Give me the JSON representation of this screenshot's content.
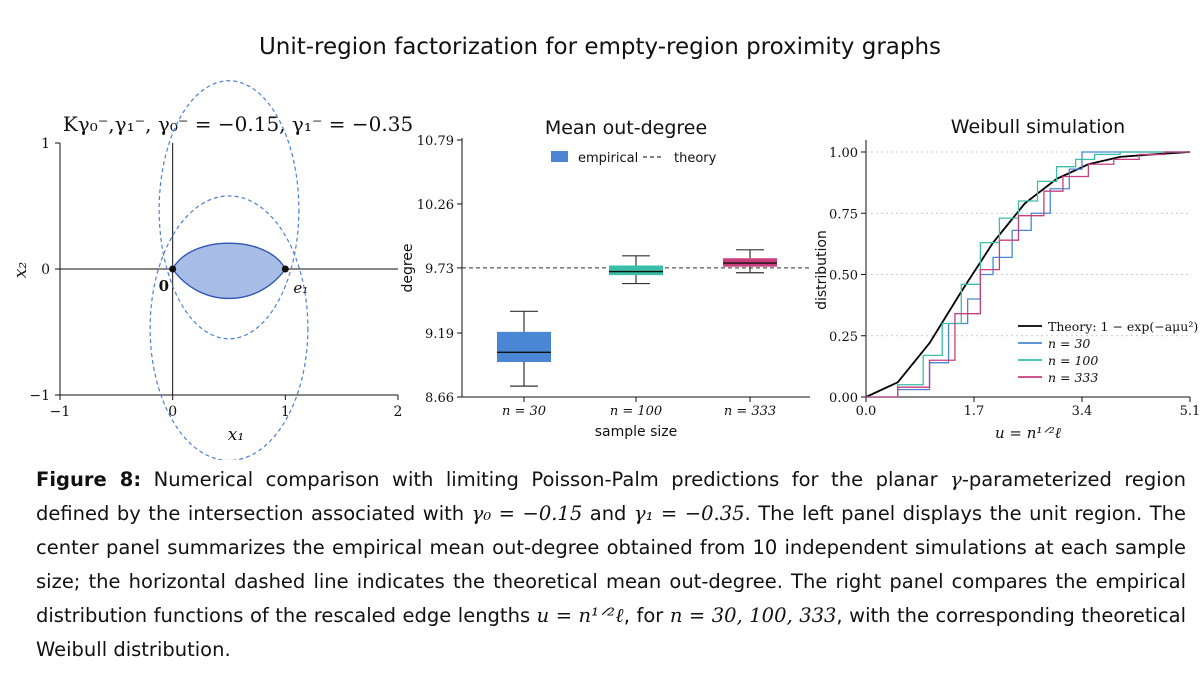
{
  "figure_title": "Unit-region factorization for empty-region proximity graphs",
  "panels": {
    "left": {
      "title": "Kγ₀⁻,γ₁⁻, γ₀⁻ = −0.15, γ₁⁻ = −0.35",
      "xlabel": "x₁",
      "ylabel": "x₂",
      "x_ticks": [
        "−1",
        "0",
        "1",
        "2"
      ],
      "y_ticks": [
        "1",
        "0",
        "−1"
      ],
      "point_labels": [
        "0",
        "e₁"
      ]
    },
    "center": {
      "title": "Mean out-degree",
      "xlabel": "sample size",
      "ylabel": "degree",
      "legend": [
        "empirical",
        "theory"
      ]
    },
    "right": {
      "title": "Weibull simulation",
      "xlabel": "u = n¹ᐟ²ℓ",
      "ylabel": "distribution",
      "legend": [
        "Theory: 1 − exp(−aμu²)",
        "n = 30",
        "n = 100",
        "n = 333"
      ]
    }
  },
  "chart_data": [
    {
      "type": "area",
      "title": "Kγ₀⁻,γ₁⁻, γ₀⁻ = −0.15, γ₁⁻ = −0.35",
      "xlabel": "x₁",
      "ylabel": "x₂",
      "xlim": [
        -1,
        2
      ],
      "ylim": [
        -1,
        1
      ],
      "gamma0": -0.15,
      "gamma1": -0.35,
      "points": [
        {
          "label": "0",
          "x": 0,
          "y": 0
        },
        {
          "label": "e₁",
          "x": 1,
          "y": 0
        }
      ],
      "region_colors": {
        "fill": "#a8bde6",
        "edge": "#2f55b8",
        "circle": "#4f7ed6"
      }
    },
    {
      "type": "box",
      "title": "Mean out-degree",
      "xlabel": "sample size",
      "ylabel": "degree",
      "categories": [
        "n = 30",
        "n = 100",
        "n = 333"
      ],
      "y_ticks": [
        8.66,
        9.19,
        9.73,
        10.26,
        10.79
      ],
      "ylim": [
        8.66,
        10.79
      ],
      "theory": 9.73,
      "boxes": [
        {
          "category": "n = 30",
          "whisker_low": 8.75,
          "q1": 8.95,
          "median": 9.03,
          "q3": 9.2,
          "whisker_high": 9.37,
          "color": "#4a86d4"
        },
        {
          "category": "n = 100",
          "whisker_low": 9.6,
          "q1": 9.67,
          "median": 9.7,
          "q3": 9.75,
          "whisker_high": 9.83,
          "color": "#3bbfa8"
        },
        {
          "category": "n = 333",
          "whisker_low": 9.69,
          "q1": 9.74,
          "median": 9.77,
          "q3": 9.81,
          "whisker_high": 9.88,
          "color": "#c83f7e"
        }
      ],
      "legend": [
        "empirical",
        "theory"
      ],
      "grid": false
    },
    {
      "type": "line",
      "title": "Weibull simulation",
      "xlabel": "u = n¹ᐟ²ℓ",
      "ylabel": "distribution",
      "xlim": [
        0,
        5.1
      ],
      "ylim": [
        0,
        1
      ],
      "x_ticks": [
        0.0,
        1.7,
        3.4,
        5.1
      ],
      "y_ticks": [
        0.0,
        0.25,
        0.5,
        0.75,
        1.0
      ],
      "series": [
        {
          "name": "Theory: 1 − exp(−aμu²)",
          "color": "#000000",
          "x": [
            0,
            0.5,
            1.0,
            1.5,
            2.0,
            2.5,
            3.0,
            3.5,
            4.0,
            4.5,
            5.1
          ],
          "y": [
            0,
            0.06,
            0.22,
            0.43,
            0.63,
            0.79,
            0.89,
            0.95,
            0.98,
            0.99,
            1.0
          ]
        },
        {
          "name": "n = 30",
          "color": "#4a86d4",
          "x": [
            0,
            0.5,
            1.0,
            1.3,
            1.6,
            1.8,
            2.0,
            2.3,
            2.6,
            2.9,
            3.2,
            3.4,
            3.6,
            5.1
          ],
          "y": [
            0,
            0.03,
            0.14,
            0.3,
            0.4,
            0.5,
            0.57,
            0.68,
            0.75,
            0.85,
            0.93,
            1.0,
            1.0,
            1.0
          ]
        },
        {
          "name": "n = 100",
          "color": "#3bbfa8",
          "x": [
            0,
            0.5,
            0.9,
            1.2,
            1.5,
            1.8,
            2.1,
            2.4,
            2.7,
            3.0,
            3.3,
            3.6,
            4.0,
            5.1
          ],
          "y": [
            0,
            0.05,
            0.17,
            0.3,
            0.46,
            0.63,
            0.73,
            0.8,
            0.88,
            0.94,
            0.97,
            0.99,
            1.0,
            1.0
          ]
        },
        {
          "name": "n = 333",
          "color": "#c83f7e",
          "x": [
            0,
            0.5,
            1.0,
            1.4,
            1.8,
            2.1,
            2.4,
            2.8,
            3.1,
            3.5,
            3.9,
            4.3,
            4.7,
            5.1
          ],
          "y": [
            0,
            0.04,
            0.15,
            0.34,
            0.52,
            0.64,
            0.74,
            0.84,
            0.9,
            0.95,
            0.97,
            0.99,
            1.0,
            1.0
          ]
        }
      ],
      "legend_position": "lower-right",
      "grid": true
    }
  ],
  "caption": {
    "label": "Figure 8:",
    "text_1": " Numerical comparison with limiting Poisson-Palm predictions for the planar ",
    "gamma_symbol": "γ",
    "text_2": "-parameterized region defined by the intersection associated with ",
    "g0": "γ₀ = −0.15",
    "text_3": " and ",
    "g1": "γ₁ = −0.35",
    "text_4": ". The left panel displays the unit region. The center panel summarizes the empirical mean out-degree obtained from 10 independent simulations at each sample size; the horizontal dashed line indicates the theoretical mean out-degree. The right panel compares the empirical distribution functions of the rescaled edge lengths ",
    "u_formula": "u = n¹ᐟ²ℓ",
    "text_5": ", for ",
    "n_values": "n = 30, 100, 333",
    "text_6": ", with the corresponding theoretical Weibull distribution."
  }
}
